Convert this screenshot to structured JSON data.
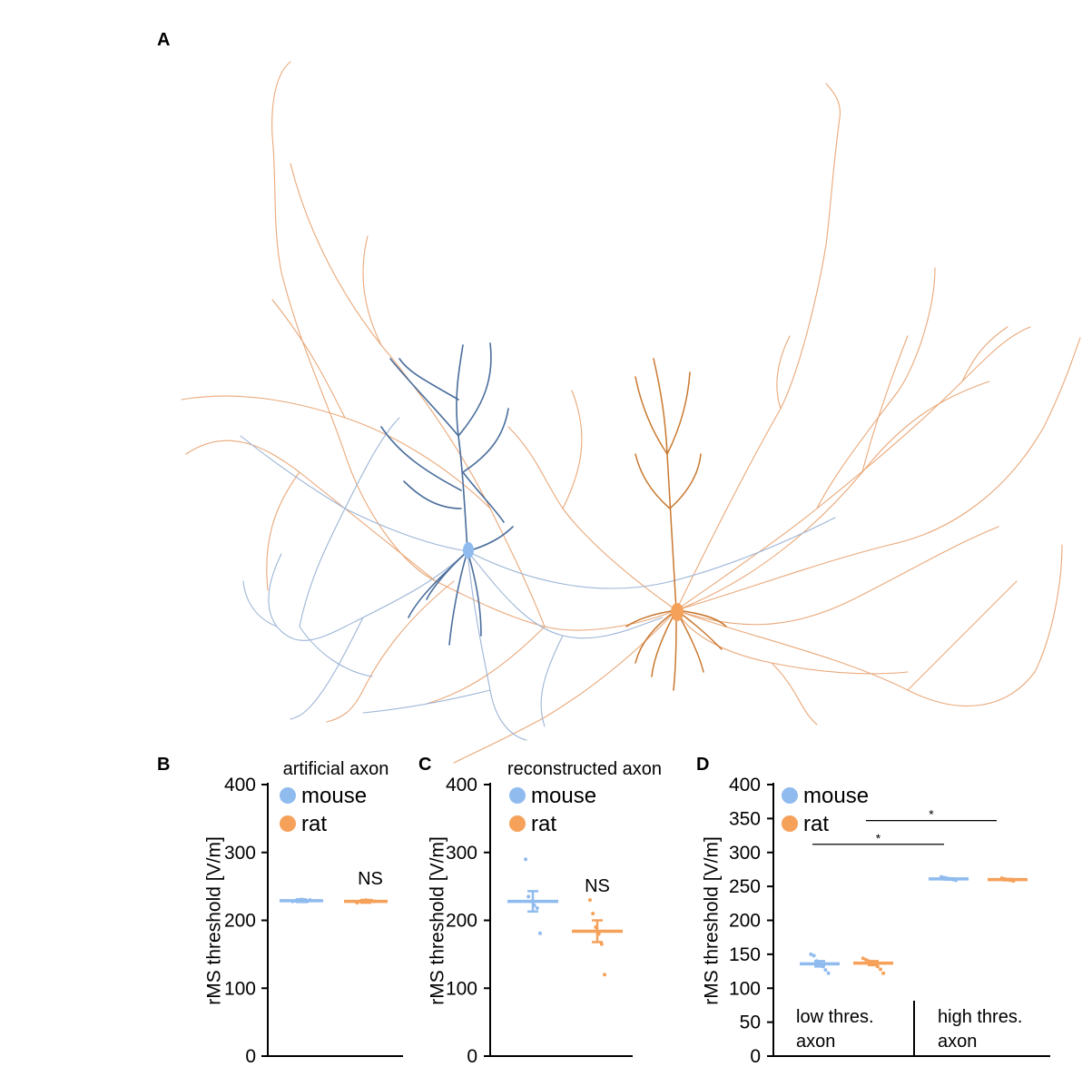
{
  "panel_letters": {
    "a": "A",
    "b": "B",
    "c": "C",
    "d": "D"
  },
  "colors": {
    "mouse": "#8fbbef",
    "rat": "#f5a15a",
    "mouse_neuron": "#4a6e9c",
    "rat_neuron": "#c9782f",
    "axis": "#000000"
  },
  "chart_data": [
    {
      "panel": "B",
      "type": "scatter",
      "title": "artificial axon",
      "ylabel": "rMS threshold [V/m]",
      "ylim": [
        0,
        400
      ],
      "yticks": [
        0,
        100,
        200,
        300,
        400
      ],
      "legend": {
        "position": "top",
        "entries": [
          "mouse",
          "rat"
        ]
      },
      "annotation": "NS",
      "series": [
        {
          "name": "mouse",
          "mean": 229,
          "sem": 2,
          "points": [
            228,
            229,
            230,
            231,
            229,
            228,
            230
          ]
        },
        {
          "name": "rat",
          "mean": 228,
          "sem": 2,
          "points": [
            226,
            228,
            229,
            230,
            227,
            229,
            228
          ]
        }
      ]
    },
    {
      "panel": "C",
      "type": "scatter",
      "title": "reconstructed axon",
      "ylabel": "rMS threshold [V/m]",
      "ylim": [
        0,
        400
      ],
      "yticks": [
        0,
        100,
        200,
        300,
        400
      ],
      "legend": {
        "position": "top",
        "entries": [
          "mouse",
          "rat"
        ]
      },
      "annotation": "NS",
      "series": [
        {
          "name": "mouse",
          "mean": 228,
          "sem": 15,
          "points": [
            290,
            235,
            228,
            222,
            218,
            181
          ]
        },
        {
          "name": "rat",
          "mean": 184,
          "sem": 16,
          "points": [
            230,
            210,
            190,
            180,
            165,
            120
          ]
        }
      ]
    },
    {
      "panel": "D",
      "type": "scatter",
      "title": "",
      "ylabel": "rMS threshold [V/m]",
      "ylim": [
        0,
        400
      ],
      "yticks": [
        0,
        50,
        100,
        150,
        200,
        250,
        300,
        350,
        400
      ],
      "legend": {
        "position": "top-left",
        "entries": [
          "mouse",
          "rat"
        ]
      },
      "groups": [
        "low thres. axon",
        "high thres. axon"
      ],
      "group_label_lines": [
        [
          "low thres.",
          "axon"
        ],
        [
          "high thres.",
          "axon"
        ]
      ],
      "significance": [
        {
          "label": "*",
          "from": "low mouse",
          "to": "high mouse",
          "y": 312
        },
        {
          "label": "*",
          "from": "low rat",
          "to": "high rat",
          "y": 347
        }
      ],
      "series": [
        {
          "name": "mouse",
          "group": "low thres. axon",
          "mean": 136,
          "sem": 4,
          "points": [
            150,
            148,
            140,
            137,
            132,
            127,
            122
          ]
        },
        {
          "name": "rat",
          "group": "low thres. axon",
          "mean": 137,
          "sem": 3,
          "points": [
            144,
            142,
            140,
            138,
            135,
            132,
            128,
            122
          ]
        },
        {
          "name": "mouse",
          "group": "high thres. axon",
          "mean": 261,
          "sem": 1,
          "points": [
            264,
            263,
            262,
            261,
            260,
            259
          ]
        },
        {
          "name": "rat",
          "group": "high thres. axon",
          "mean": 260,
          "sem": 1,
          "points": [
            262,
            261,
            260,
            259,
            258
          ]
        }
      ]
    }
  ]
}
